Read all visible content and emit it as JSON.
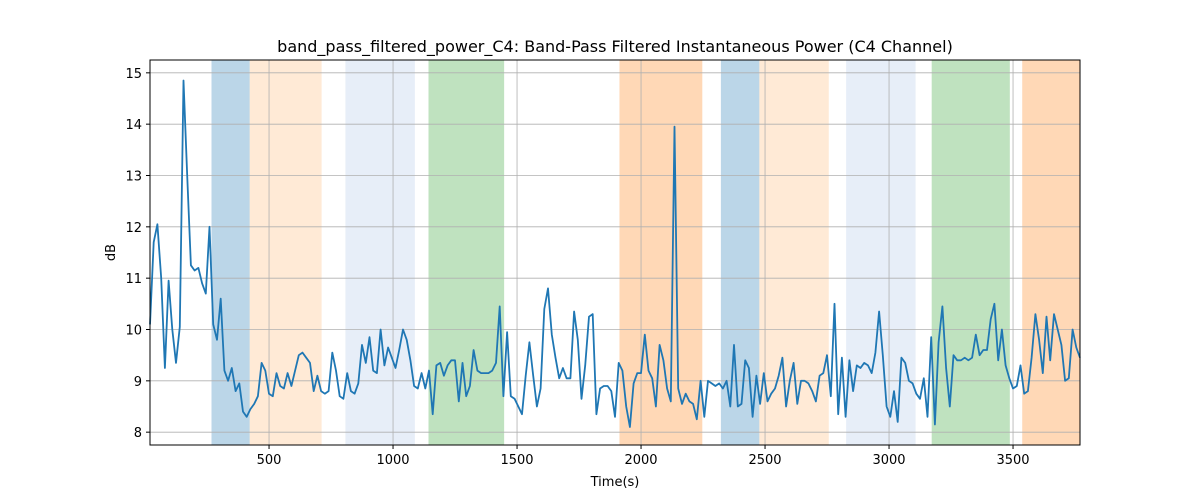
{
  "chart_data": {
    "type": "line",
    "title": "band_pass_filtered_power_C4: Band-Pass Filtered Instantaneous Power (C4 Channel)",
    "xlabel": "Time(s)",
    "ylabel": "dB",
    "xlim": [
      20,
      3770
    ],
    "ylim": [
      7.75,
      15.25
    ],
    "xticks": [
      500,
      1000,
      1500,
      2000,
      2500,
      3000,
      3500
    ],
    "yticks": [
      8,
      9,
      10,
      11,
      12,
      13,
      14,
      15
    ],
    "grid": true,
    "line_color": "#1f77b4",
    "bands": [
      {
        "start": 268,
        "end": 422,
        "color": "#1f77b4",
        "opacity": 0.3
      },
      {
        "start": 422,
        "end": 712,
        "color": "#ffbb78",
        "opacity": 0.3
      },
      {
        "start": 808,
        "end": 1088,
        "color": "#aec7e8",
        "opacity": 0.3
      },
      {
        "start": 1143,
        "end": 1448,
        "color": "#2ca02c",
        "opacity": 0.3
      },
      {
        "start": 1913,
        "end": 2247,
        "color": "#ff7f0e",
        "opacity": 0.3
      },
      {
        "start": 2322,
        "end": 2477,
        "color": "#1f77b4",
        "opacity": 0.3
      },
      {
        "start": 2477,
        "end": 2757,
        "color": "#ffbb78",
        "opacity": 0.3
      },
      {
        "start": 2827,
        "end": 3107,
        "color": "#aec7e8",
        "opacity": 0.3
      },
      {
        "start": 3172,
        "end": 3487,
        "color": "#2ca02c",
        "opacity": 0.3
      },
      {
        "start": 3537,
        "end": 3770,
        "color": "#ff7f0e",
        "opacity": 0.3
      }
    ],
    "series": [
      {
        "x": [
          20,
          35,
          50,
          65,
          80,
          95,
          110,
          125,
          140,
          155,
          170,
          185,
          200,
          215,
          230,
          245,
          260,
          275,
          290,
          305,
          320,
          335,
          350,
          365,
          380,
          395,
          410,
          425,
          440,
          455,
          470,
          485,
          500,
          515,
          530,
          545,
          560,
          575,
          590,
          605,
          620,
          635,
          650,
          665,
          680,
          695,
          710,
          725,
          740,
          755,
          770,
          785,
          800,
          815,
          830,
          845,
          860,
          875,
          890,
          905,
          920,
          935,
          950,
          965,
          980,
          995,
          1010,
          1025,
          1040,
          1055,
          1070,
          1085,
          1100,
          1115,
          1130,
          1145,
          1160,
          1175,
          1190,
          1205,
          1220,
          1235,
          1250,
          1265,
          1280,
          1295,
          1310,
          1325,
          1340,
          1355,
          1370,
          1385,
          1400,
          1415,
          1430,
          1445,
          1460,
          1475,
          1490,
          1505,
          1520,
          1535,
          1550,
          1565,
          1580,
          1595,
          1610,
          1625,
          1640,
          1655,
          1670,
          1685,
          1700,
          1715,
          1730,
          1745,
          1760,
          1775,
          1790,
          1805,
          1820,
          1835,
          1850,
          1865,
          1880,
          1895,
          1910,
          1925,
          1940,
          1955,
          1970,
          1985,
          2000,
          2015,
          2030,
          2045,
          2060,
          2075,
          2090,
          2105,
          2120,
          2135,
          2150,
          2165,
          2180,
          2195,
          2210,
          2225,
          2240,
          2255,
          2270,
          2285,
          2300,
          2315,
          2330,
          2345,
          2360,
          2375,
          2390,
          2405,
          2420,
          2435,
          2450,
          2465,
          2480,
          2495,
          2510,
          2525,
          2540,
          2555,
          2570,
          2585,
          2600,
          2615,
          2630,
          2645,
          2660,
          2675,
          2690,
          2705,
          2720,
          2735,
          2750,
          2765,
          2780,
          2795,
          2810,
          2825,
          2840,
          2855,
          2870,
          2885,
          2900,
          2915,
          2930,
          2945,
          2960,
          2975,
          2990,
          3005,
          3020,
          3035,
          3050,
          3065,
          3080,
          3095,
          3110,
          3125,
          3140,
          3155,
          3170,
          3185,
          3200,
          3215,
          3230,
          3245,
          3260,
          3275,
          3290,
          3305,
          3320,
          3335,
          3350,
          3365,
          3380,
          3395,
          3410,
          3425,
          3440,
          3455,
          3470,
          3485,
          3500,
          3515,
          3530,
          3545,
          3560,
          3575,
          3590,
          3605,
          3620,
          3635,
          3650,
          3665,
          3680,
          3695,
          3710,
          3725,
          3740,
          3755,
          3770
        ],
        "y": [
          10.1,
          11.7,
          12.05,
          11.0,
          9.25,
          10.95,
          10.0,
          9.35,
          10.05,
          14.85,
          13.0,
          11.25,
          11.15,
          11.2,
          10.9,
          10.7,
          12.0,
          10.1,
          9.8,
          10.6,
          9.2,
          9.0,
          9.25,
          8.8,
          8.95,
          8.4,
          8.3,
          8.45,
          8.55,
          8.7,
          9.35,
          9.2,
          8.75,
          8.7,
          9.15,
          8.9,
          8.85,
          9.15,
          8.9,
          9.2,
          9.5,
          9.55,
          9.45,
          9.35,
          8.8,
          9.1,
          8.8,
          8.75,
          8.8,
          9.55,
          9.2,
          8.7,
          8.65,
          9.15,
          8.8,
          8.75,
          8.95,
          9.7,
          9.35,
          9.85,
          9.2,
          9.15,
          10.0,
          9.3,
          9.65,
          9.45,
          9.25,
          9.6,
          10.0,
          9.8,
          9.4,
          8.9,
          8.85,
          9.15,
          8.85,
          9.2,
          8.35,
          9.3,
          9.35,
          9.1,
          9.3,
          9.4,
          9.4,
          8.6,
          9.35,
          8.7,
          8.9,
          9.6,
          9.2,
          9.15,
          9.15,
          9.15,
          9.2,
          9.35,
          10.45,
          8.7,
          9.95,
          8.7,
          8.65,
          8.5,
          8.35,
          9.1,
          9.75,
          9.1,
          8.5,
          8.85,
          10.4,
          10.8,
          9.9,
          9.45,
          9.05,
          9.25,
          9.05,
          9.05,
          10.35,
          9.8,
          8.65,
          9.3,
          10.25,
          10.3,
          8.35,
          8.85,
          8.9,
          8.9,
          8.8,
          8.3,
          9.35,
          9.2,
          8.5,
          8.1,
          8.95,
          9.15,
          9.15,
          9.9,
          9.2,
          9.05,
          8.5,
          9.7,
          9.4,
          8.85,
          8.6,
          13.95,
          8.85,
          8.55,
          8.75,
          8.6,
          8.55,
          8.25,
          9.0,
          8.3,
          9.0,
          8.95,
          8.9,
          8.95,
          8.85,
          9.0,
          8.5,
          9.7,
          8.5,
          8.55,
          9.4,
          9.25,
          8.3,
          9.1,
          8.55,
          9.15,
          8.6,
          8.75,
          8.85,
          9.1,
          9.45,
          8.5,
          9.0,
          9.35,
          8.55,
          9.0,
          9.0,
          8.95,
          8.8,
          8.6,
          9.1,
          9.15,
          9.5,
          8.7,
          10.5,
          8.35,
          9.45,
          8.3,
          9.4,
          8.8,
          9.3,
          9.25,
          9.35,
          9.3,
          9.15,
          9.55,
          10.35,
          9.5,
          8.5,
          8.3,
          8.8,
          8.2,
          9.45,
          9.35,
          9.0,
          8.95,
          8.75,
          8.65,
          9.05,
          8.3,
          9.85,
          8.15,
          9.75,
          10.45,
          9.25,
          8.5,
          9.5,
          9.4,
          9.4,
          9.45,
          9.4,
          9.45,
          9.9,
          9.5,
          9.6,
          9.6,
          10.2,
          10.5,
          9.4,
          10.0,
          9.3,
          9.05,
          8.85,
          8.9,
          9.3,
          8.75,
          8.8,
          9.45,
          10.3,
          9.8,
          9.15,
          10.25,
          9.4,
          10.3,
          10.0,
          9.7,
          9.0,
          9.05,
          10.0,
          9.65,
          9.45
        ]
      }
    ]
  }
}
